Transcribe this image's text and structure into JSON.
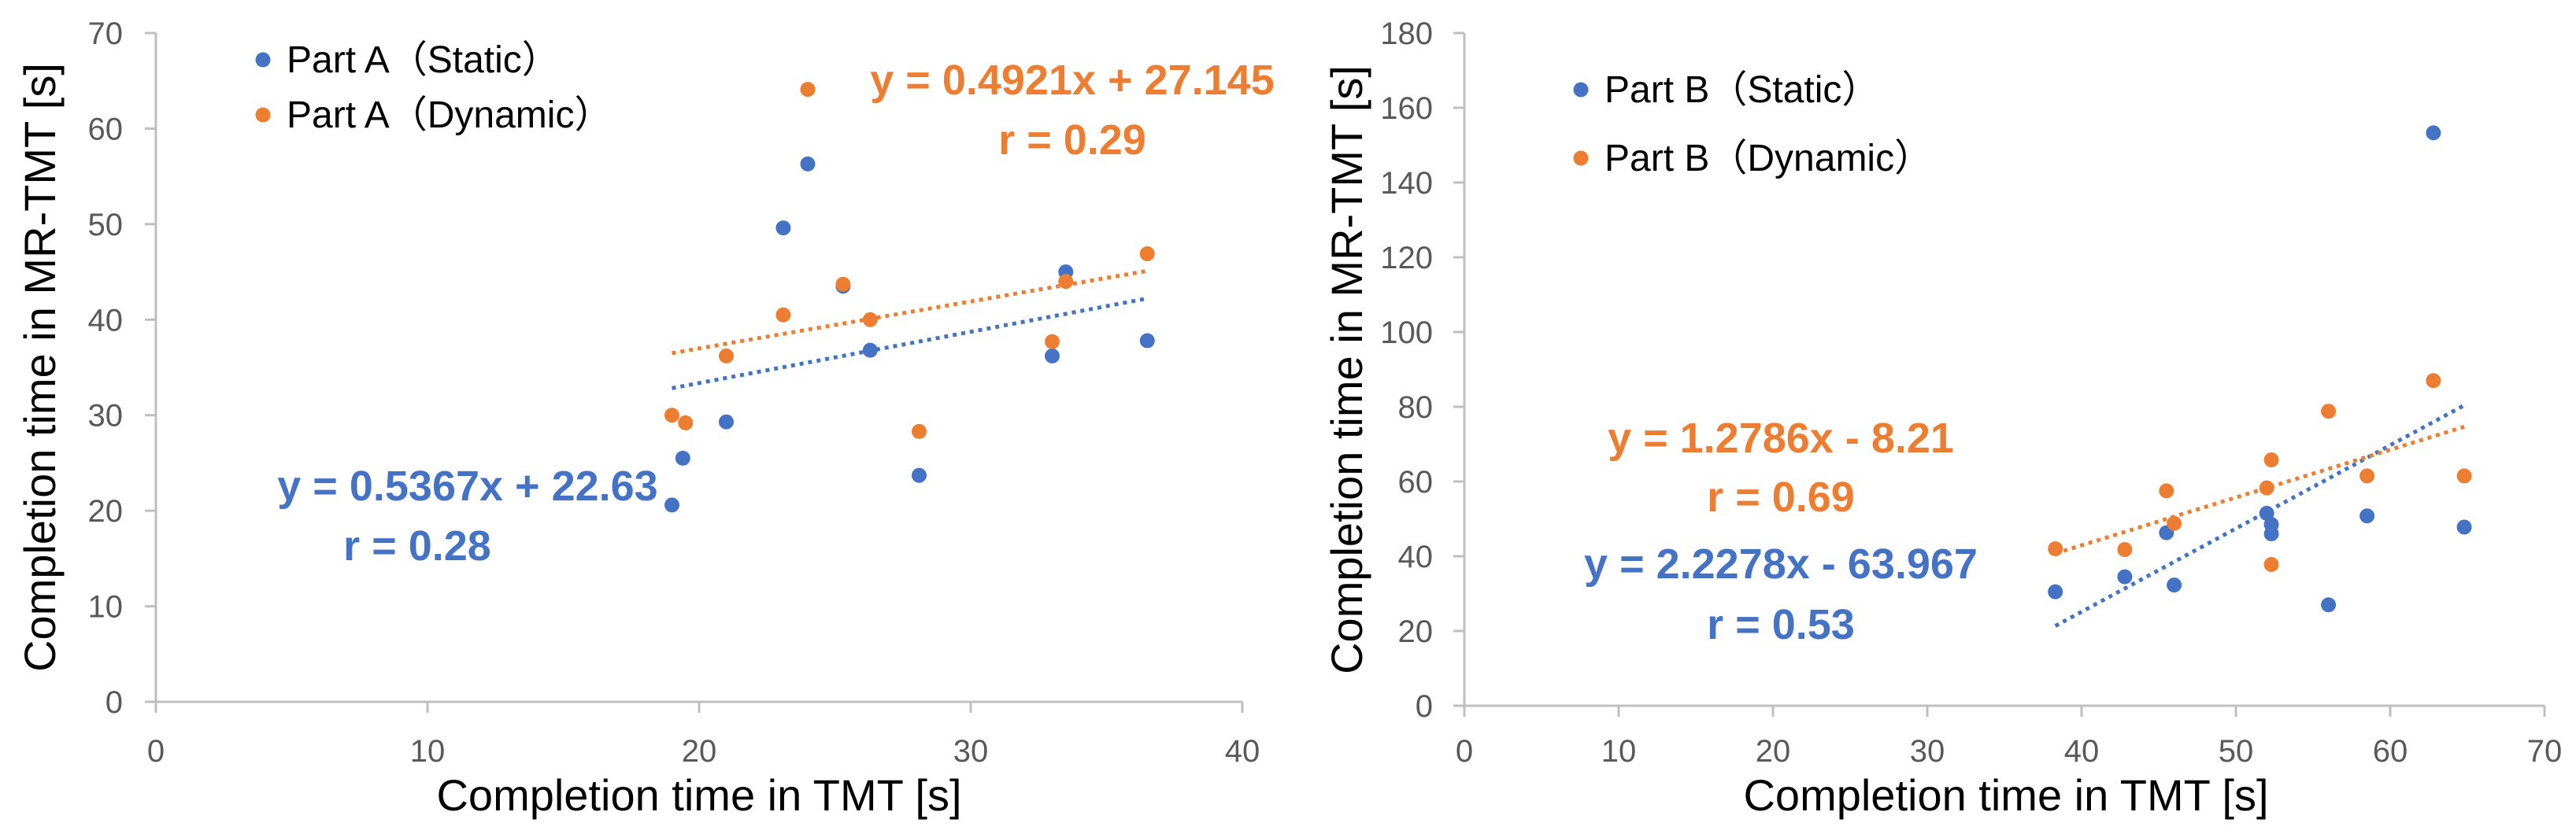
{
  "chart_data": [
    {
      "type": "scatter",
      "title": "",
      "xlabel": "Completion time in TMT [s]",
      "ylabel": "Completion time in MR-TMT [s]",
      "xlim": [
        0,
        40
      ],
      "ylim": [
        0,
        70
      ],
      "xticks": [
        0,
        10,
        20,
        30,
        40
      ],
      "yticks": [
        0,
        10,
        20,
        30,
        40,
        50,
        60,
        70
      ],
      "grid": false,
      "legend_position": "top-left",
      "series": [
        {
          "name": "Part A（Static）",
          "color": "#4472C4",
          "x": [
            19.0,
            19.4,
            21.0,
            23.1,
            24.0,
            25.3,
            26.3,
            28.1,
            33.0,
            33.5,
            36.5
          ],
          "y": [
            20.6,
            25.5,
            29.3,
            49.6,
            56.3,
            43.5,
            36.8,
            23.7,
            36.2,
            45.0,
            37.8
          ],
          "trendline": {
            "slope": 0.5367,
            "intercept": 22.63,
            "x_range": [
              19.0,
              36.5
            ]
          },
          "equation": "y = 0.5367x + 22.63",
          "r_label": "r = 0.28"
        },
        {
          "name": "Part A（Dynamic）",
          "color": "#ED7D31",
          "x": [
            19.0,
            19.5,
            21.0,
            23.1,
            24.0,
            25.3,
            26.3,
            28.1,
            33.0,
            33.5,
            36.5
          ],
          "y": [
            30.0,
            29.2,
            36.2,
            40.5,
            64.1,
            43.7,
            40.0,
            28.3,
            37.7,
            44.0,
            46.9
          ],
          "trendline": {
            "slope": 0.4921,
            "intercept": 27.145,
            "x_range": [
              19.0,
              36.5
            ]
          },
          "equation": "y = 0.4921x + 27.145",
          "r_label": "r = 0.29"
        }
      ]
    },
    {
      "type": "scatter",
      "title": "",
      "xlabel": "Completion time in TMT [s]",
      "ylabel": "Completion time in MR-TMT [s]",
      "xlim": [
        0,
        70
      ],
      "ylim": [
        0,
        180
      ],
      "xticks": [
        0,
        10,
        20,
        30,
        40,
        50,
        60,
        70
      ],
      "yticks": [
        0,
        20,
        40,
        60,
        80,
        100,
        120,
        140,
        160,
        180
      ],
      "grid": false,
      "legend_position": "top-left",
      "series": [
        {
          "name": "Part B（Static）",
          "color": "#4472C4",
          "x": [
            38.3,
            42.8,
            45.5,
            46.0,
            52.0,
            52.3,
            52.3,
            56.0,
            58.5,
            62.8,
            64.8
          ],
          "y": [
            30.5,
            34.5,
            46.3,
            32.3,
            51.5,
            46.0,
            48.5,
            27.0,
            50.8,
            153.3,
            47.8
          ],
          "trendline": {
            "slope": 2.2278,
            "intercept": -63.967,
            "x_range": [
              38.3,
              64.8
            ]
          },
          "equation": "y = 2.2278x - 63.967",
          "r_label": "r = 0.53"
        },
        {
          "name": "Part B（Dynamic）",
          "color": "#ED7D31",
          "x": [
            38.3,
            42.8,
            45.5,
            46.0,
            52.0,
            52.3,
            52.3,
            56.0,
            58.5,
            62.8,
            64.8
          ],
          "y": [
            42.0,
            41.8,
            57.5,
            48.8,
            58.3,
            65.8,
            37.8,
            78.8,
            61.5,
            87.0,
            61.5
          ],
          "trendline": {
            "slope": 1.2786,
            "intercept": -8.21,
            "x_range": [
              38.3,
              64.8
            ]
          },
          "equation": "y = 1.2786x - 8.21",
          "r_label": "r = 0.69"
        }
      ]
    }
  ]
}
